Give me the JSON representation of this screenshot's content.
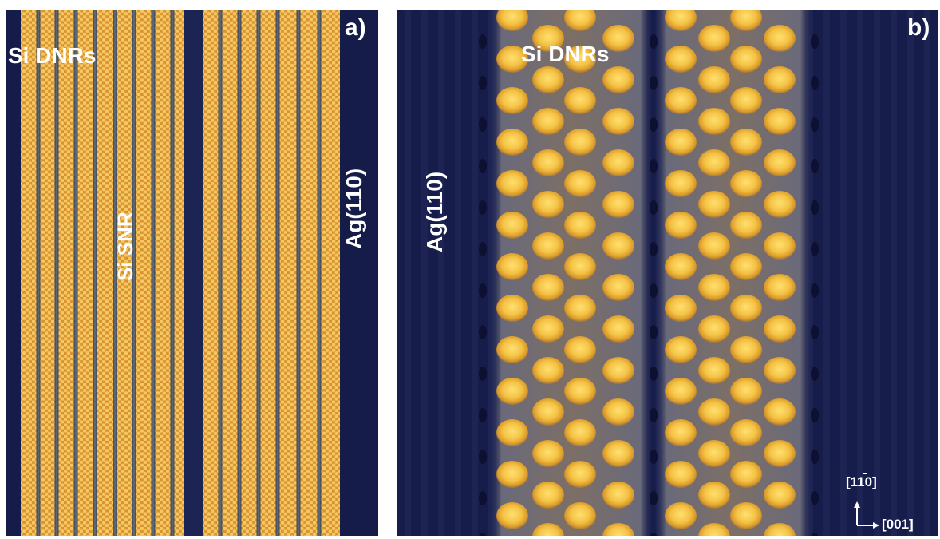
{
  "figure": {
    "panel_a": {
      "letter": "a)",
      "labels": {
        "dnrs": "Si DNRs",
        "snr": "Si SNR",
        "substrate": "Ag(110)"
      },
      "colors": {
        "background": "#161c4a",
        "ribbon": "#e3a436",
        "ribbon_highlight": "#f2c060",
        "trench": "#3f5675"
      }
    },
    "panel_b": {
      "letter": "b)",
      "labels": {
        "dnrs": "Si DNRs",
        "substrate": "Ag(110)"
      },
      "axes": {
        "vertical": "[1̅1̅0]",
        "vertical_plain": "[110]",
        "horizontal": "[001]"
      },
      "colors": {
        "background": "#171d4b",
        "blob": "#f3c54a",
        "blob_core": "#ffd968",
        "halo": "#8a6f5a"
      }
    }
  }
}
